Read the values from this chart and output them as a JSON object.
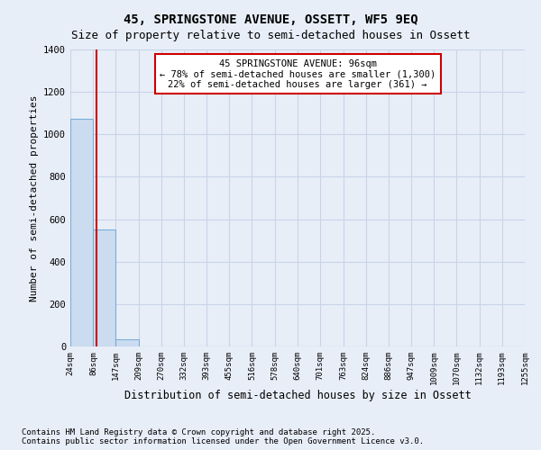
{
  "title": "45, SPRINGSTONE AVENUE, OSSETT, WF5 9EQ",
  "subtitle": "Size of property relative to semi-detached houses in Ossett",
  "xlabel": "Distribution of semi-detached houses by size in Ossett",
  "ylabel": "Number of semi-detached properties",
  "bar_values": [
    1075,
    550,
    35,
    1,
    0,
    0,
    0,
    0,
    0,
    0,
    0,
    0,
    0,
    0,
    0,
    0,
    0,
    0,
    0,
    0
  ],
  "bar_labels": [
    "24sqm",
    "86sqm",
    "147sqm",
    "209sqm",
    "270sqm",
    "332sqm",
    "393sqm",
    "455sqm",
    "516sqm",
    "578sqm",
    "640sqm",
    "701sqm",
    "763sqm",
    "824sqm",
    "886sqm",
    "947sqm",
    "1009sqm",
    "1070sqm",
    "1132sqm",
    "1193sqm",
    "1255sqm"
  ],
  "bar_color": "#ccdcf0",
  "bar_edge_color": "#7aaed6",
  "property_line_x": 96,
  "property_line_color": "#cc0000",
  "annotation_text": "45 SPRINGSTONE AVENUE: 96sqm\n← 78% of semi-detached houses are smaller (1,300)\n22% of semi-detached houses are larger (361) →",
  "annotation_box_color": "#cc0000",
  "ylim": [
    0,
    1400
  ],
  "yticks": [
    0,
    200,
    400,
    600,
    800,
    1000,
    1200,
    1400
  ],
  "background_color": "#e8eef8",
  "grid_color": "#c8d4e8",
  "footer_text": "Contains HM Land Registry data © Crown copyright and database right 2025.\nContains public sector information licensed under the Open Government Licence v3.0.",
  "title_fontsize": 10,
  "subtitle_fontsize": 9,
  "xlabel_fontsize": 8.5,
  "ylabel_fontsize": 8,
  "bin_edges": [
    24,
    86,
    147,
    209,
    270,
    332,
    393,
    455,
    516,
    578,
    640,
    701,
    763,
    824,
    886,
    947,
    1009,
    1070,
    1132,
    1193,
    1255
  ]
}
